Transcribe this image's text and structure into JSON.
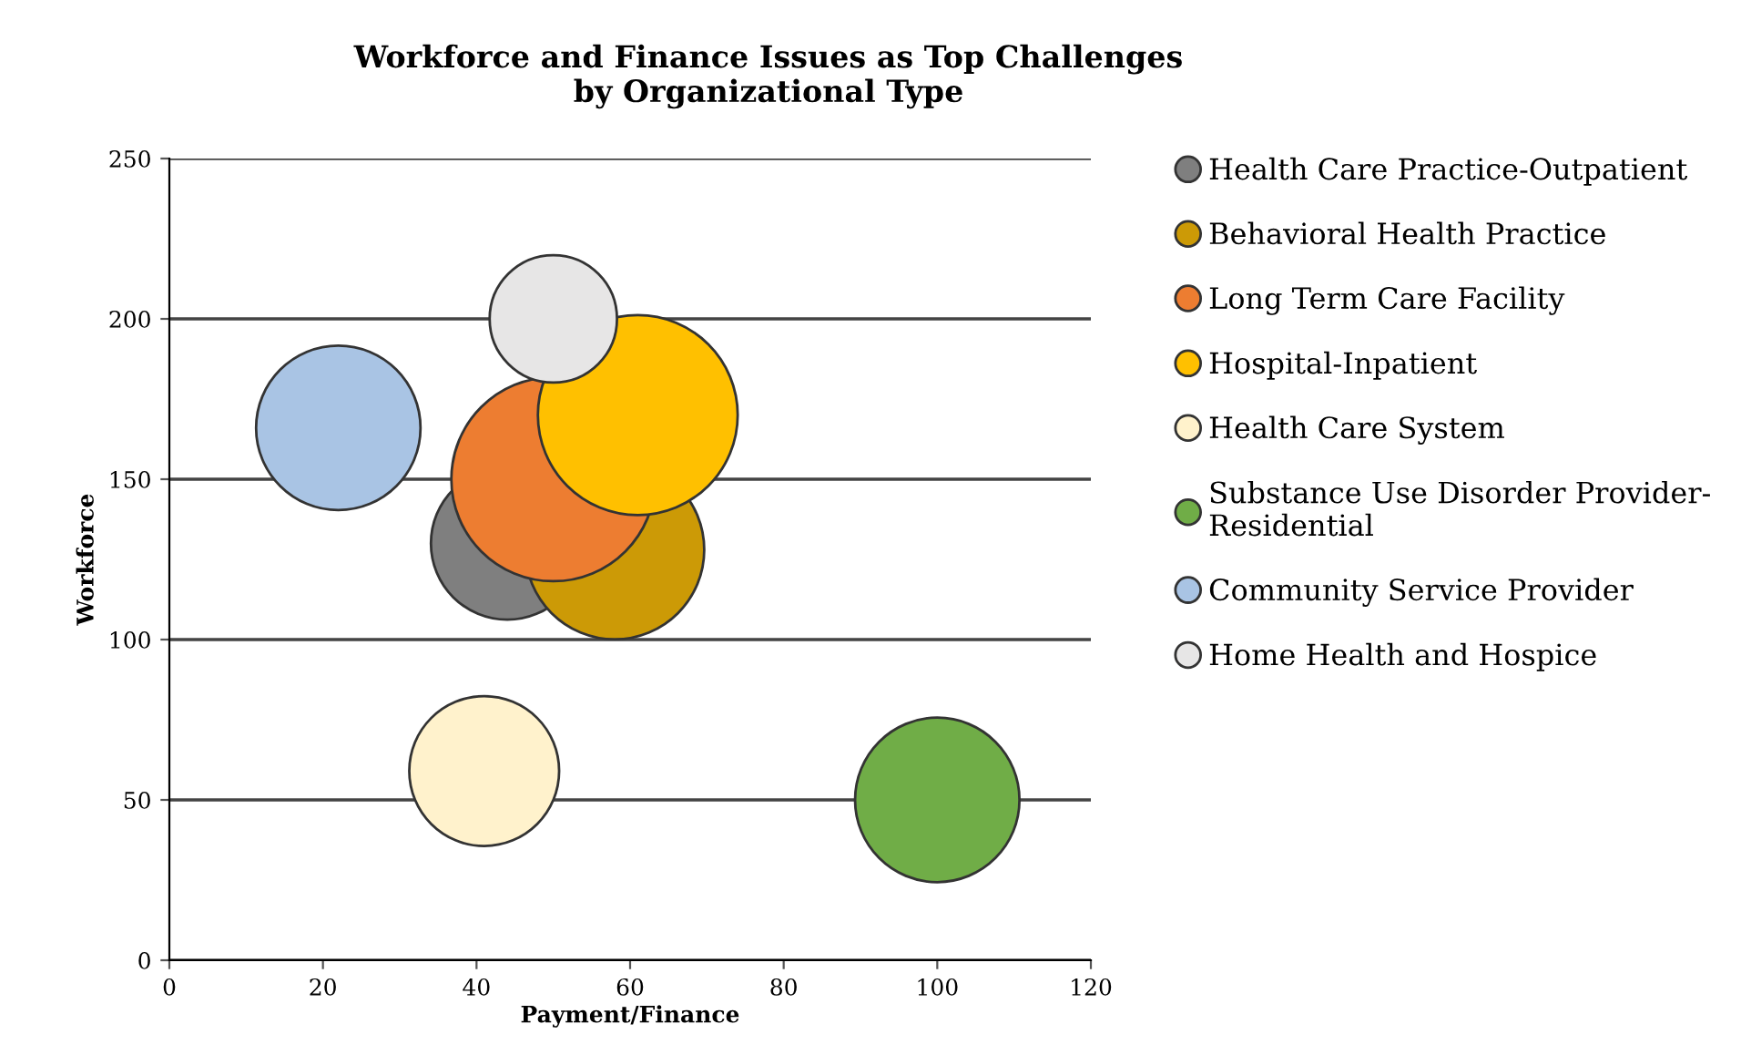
{
  "chart_data": {
    "type": "bubble",
    "title": "Workforce and Finance Issues as Top Challenges\nby Organizational Type",
    "xlabel": "Payment/Finance",
    "ylabel": "Workforce",
    "xlim": [
      0,
      120
    ],
    "xticks": [
      0,
      20,
      40,
      60,
      80,
      100,
      120
    ],
    "ylim": [
      0,
      250
    ],
    "yticks": [
      0,
      50,
      100,
      150,
      200,
      250
    ],
    "grid": "y",
    "legend": "right",
    "marker": "circle",
    "series": [
      {
        "name": "Health Care Practice-Outpatient",
        "color": "#7f7f7f",
        "x": [
          44
        ],
        "values": [
          130
        ],
        "sizes": [
          0.56
        ]
      },
      {
        "name": "Behavioral Health Practice",
        "color": "#cc9a06",
        "x": [
          58
        ],
        "values": [
          128
        ],
        "sizes": [
          0.77
        ]
      },
      {
        "name": "Long Term Care Facility",
        "color": "#ed7d31",
        "x": [
          50
        ],
        "values": [
          150
        ],
        "sizes": [
          1
        ]
      },
      {
        "name": "Hospital-Inpatient",
        "color": "#ffc000",
        "x": [
          61
        ],
        "values": [
          170
        ],
        "sizes": [
          0.96
        ]
      },
      {
        "name": "Health Care System",
        "color": "#fff2cc",
        "x": [
          41
        ],
        "values": [
          59
        ],
        "sizes": [
          0.54
        ]
      },
      {
        "name": "Substance Use Disorder Provider-\nResidential",
        "color": "#70ad47",
        "x": [
          100
        ],
        "values": [
          50
        ],
        "sizes": [
          0.65
        ]
      },
      {
        "name": "Community Service Provider",
        "color": "#a9c4e4",
        "x": [
          22
        ],
        "values": [
          166
        ],
        "sizes": [
          0.65
        ]
      },
      {
        "name": "Home Health and Hospice",
        "color": "#e7e6e6",
        "x": [
          50
        ],
        "values": [
          200
        ],
        "sizes": [
          0.39
        ]
      }
    ]
  }
}
